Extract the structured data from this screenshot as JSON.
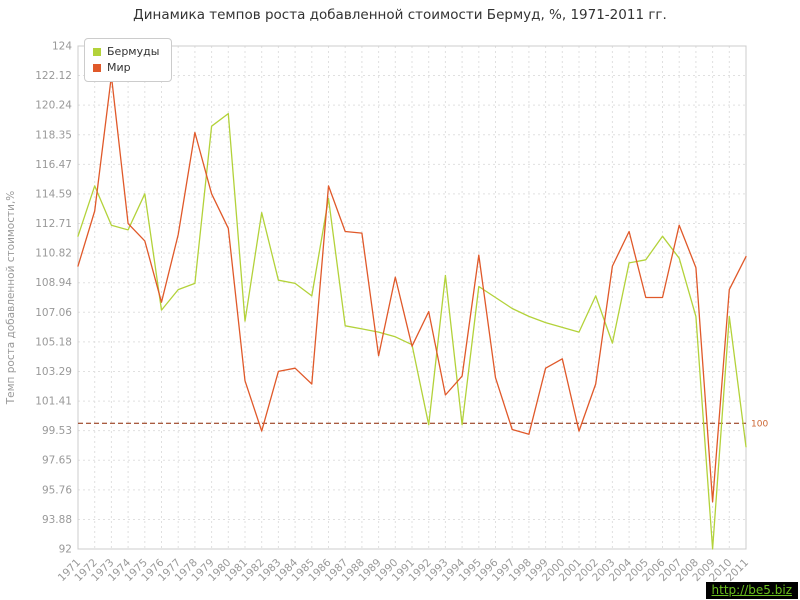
{
  "page": {
    "title": "Динамика темпов роста добавленной стоимости Бермуд, %, 1971-2011 гг.",
    "watermark": "http://be5.biz"
  },
  "chart_data": {
    "type": "line",
    "title": "Динамика темпов роста добавленной стоимости Бермуд, %, 1971-2011 гг.",
    "xlabel": "",
    "ylabel": "Темп роста добавленной стоимости,%",
    "ylim": [
      92,
      124
    ],
    "grid": true,
    "legend_position": "top-left",
    "colors": {
      "grid": "#e0e0e0",
      "border": "#cccccc",
      "axis_text": "#999999"
    },
    "y_ticks": [
      "124",
      "122.12",
      "120.24",
      "118.35",
      "116.47",
      "114.59",
      "112.71",
      "110.82",
      "108.94",
      "107.06",
      "105.18",
      "103.29",
      "101.41",
      "99.53",
      "97.65",
      "95.76",
      "93.88",
      "92"
    ],
    "x": [
      1971,
      1972,
      1973,
      1974,
      1975,
      1976,
      1977,
      1978,
      1979,
      1980,
      1981,
      1982,
      1983,
      1984,
      1985,
      1986,
      1987,
      1988,
      1989,
      1990,
      1991,
      1992,
      1993,
      1994,
      1995,
      1996,
      1997,
      1998,
      1999,
      2000,
      2001,
      2002,
      2003,
      2004,
      2005,
      2006,
      2007,
      2008,
      2009,
      2010,
      2011
    ],
    "reference_line": {
      "value": 100,
      "label": "100",
      "color": "#8b2500",
      "label_color": "#cc6633",
      "style": "dashed"
    },
    "series": [
      {
        "name": "Бермуды",
        "color": "#b3d23a",
        "values": [
          111.9,
          115.1,
          112.6,
          112.3,
          114.6,
          107.2,
          108.5,
          108.9,
          118.9,
          119.7,
          106.5,
          113.4,
          109.1,
          108.9,
          108.1,
          114.3,
          106.2,
          106.0,
          105.8,
          105.5,
          105.0,
          99.9,
          109.4,
          99.9,
          108.7,
          108.0,
          107.3,
          106.8,
          106.4,
          106.1,
          105.8,
          108.1,
          105.1,
          110.2,
          110.4,
          111.9,
          110.5,
          106.8,
          92.0,
          106.8,
          98.5
        ]
      },
      {
        "name": "Мир",
        "color": "#e0592a",
        "values": [
          110.0,
          113.5,
          122.1,
          112.7,
          111.6,
          107.7,
          112.0,
          118.5,
          114.6,
          112.4,
          102.7,
          99.5,
          103.3,
          103.5,
          102.5,
          115.1,
          112.2,
          112.1,
          104.3,
          109.3,
          104.9,
          107.1,
          101.8,
          103.0,
          110.7,
          102.9,
          99.6,
          99.3,
          103.5,
          104.1,
          99.5,
          102.5,
          110.0,
          112.2,
          108.0,
          108.0,
          112.6,
          109.9,
          95.0,
          108.5,
          110.6
        ]
      }
    ]
  }
}
